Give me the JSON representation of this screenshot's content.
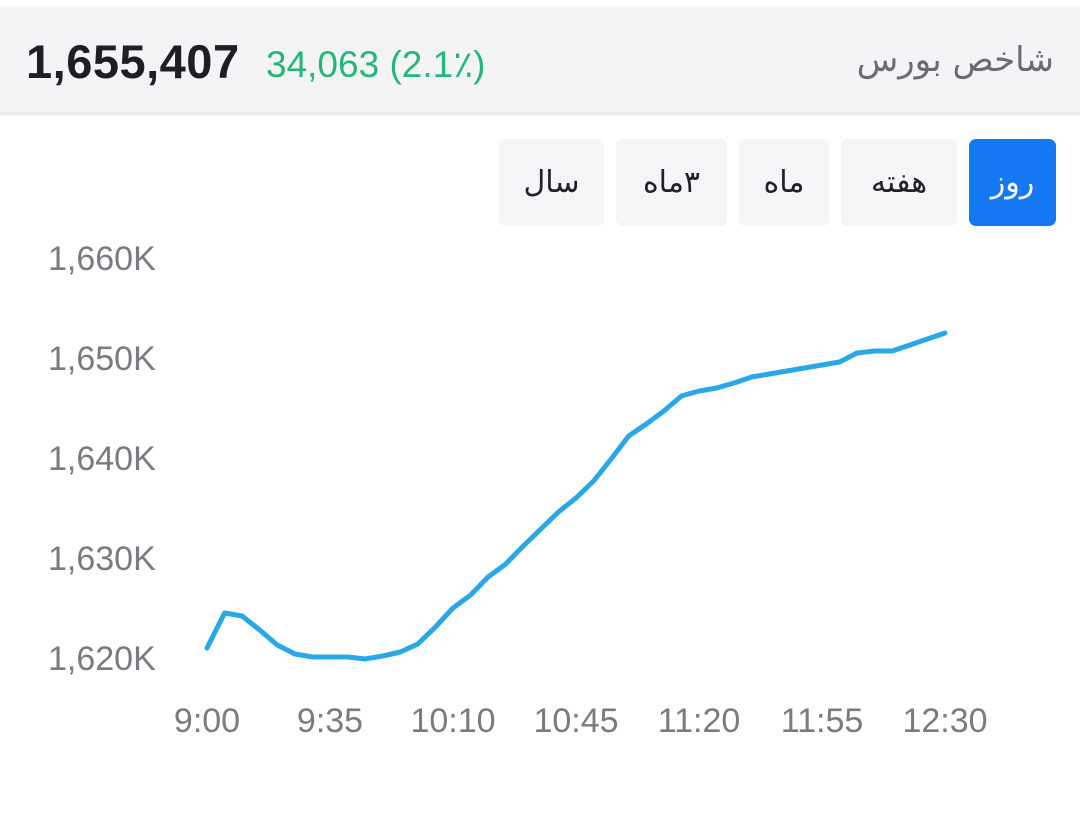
{
  "header": {
    "title": "شاخص بورس",
    "value": "1,655,407",
    "change": "34,063 (2.1٪)"
  },
  "tabs": [
    {
      "label": "روز",
      "active": true
    },
    {
      "label": "هفته",
      "active": false
    },
    {
      "label": "ماه",
      "active": false
    },
    {
      "label": "۳ماه",
      "active": false
    },
    {
      "label": "سال",
      "active": false
    }
  ],
  "colors": {
    "line": "#2aa7e6",
    "positive": "#25b77a",
    "active_tab": "#1479f2"
  },
  "chart_data": {
    "type": "line",
    "title": "",
    "xlabel": "",
    "ylabel": "",
    "x_tick_labels": [
      "9:00",
      "9:35",
      "10:10",
      "10:45",
      "11:20",
      "11:55",
      "12:30"
    ],
    "y_tick_labels": [
      "1,660K",
      "1,650K",
      "1,640K",
      "1,630K",
      "1,620K"
    ],
    "ylim": [
      1620000,
      1660000
    ],
    "x_unit": "minutes after 9:00",
    "series": [
      {
        "x": [
          0,
          5,
          10,
          15,
          20,
          25,
          30,
          35,
          40,
          45,
          50,
          55,
          60,
          65,
          70,
          75,
          80,
          85,
          90,
          95,
          100,
          105,
          110,
          115,
          120,
          125,
          130,
          135,
          140,
          145,
          150,
          155,
          160,
          165,
          170,
          175,
          180,
          185,
          190,
          195,
          200,
          205,
          210
        ],
        "y": [
          1621000,
          1624500,
          1624200,
          1622800,
          1621300,
          1620400,
          1620100,
          1620100,
          1620100,
          1619900,
          1620200,
          1620600,
          1621400,
          1623100,
          1625000,
          1626300,
          1628100,
          1629400,
          1631200,
          1632900,
          1634600,
          1636000,
          1637700,
          1639900,
          1642200,
          1643400,
          1644700,
          1646200,
          1646700,
          1647000,
          1647500,
          1648100,
          1648400,
          1648700,
          1649000,
          1649300,
          1649600,
          1650500,
          1650700,
          1650700,
          1651300,
          1651900,
          1652500
        ]
      }
    ]
  }
}
